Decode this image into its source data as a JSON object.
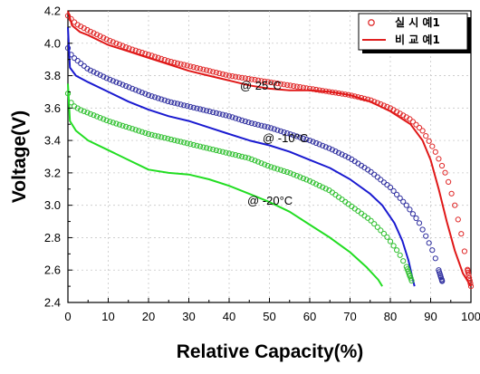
{
  "chart_data": {
    "type": "line",
    "xlabel": "Relative Capacity(%)",
    "ylabel": "Voltage(V)",
    "xlim": [
      0,
      100
    ],
    "ylim": [
      2.4,
      4.2
    ],
    "x_ticks": [
      "0",
      "10",
      "20",
      "30",
      "40",
      "50",
      "60",
      "70",
      "80",
      "90",
      "100"
    ],
    "y_ticks": [
      "2.4",
      "2.6",
      "2.8",
      "3.0",
      "3.2",
      "3.4",
      "3.6",
      "3.8",
      "4.0",
      "4.2"
    ],
    "legend": {
      "position": "top-right",
      "entries": [
        {
          "label": "실 시 예1",
          "marker": "open-circle",
          "color": "#e03030"
        },
        {
          "label": "비 교 예1",
          "marker": "line",
          "color": "#e02020"
        }
      ]
    },
    "annotations": [
      "@ 25°C",
      "@ -10°C",
      "@ -20°C"
    ],
    "series": [
      {
        "kind": "markers",
        "color": "#e02828",
        "points": [
          [
            0,
            4.17
          ],
          [
            2,
            4.12
          ],
          [
            5,
            4.08
          ],
          [
            10,
            4.02
          ],
          [
            15,
            3.97
          ],
          [
            20,
            3.93
          ],
          [
            25,
            3.89
          ],
          [
            30,
            3.86
          ],
          [
            35,
            3.83
          ],
          [
            40,
            3.8
          ],
          [
            45,
            3.78
          ],
          [
            50,
            3.76
          ],
          [
            55,
            3.74
          ],
          [
            60,
            3.72
          ],
          [
            65,
            3.7
          ],
          [
            70,
            3.68
          ],
          [
            75,
            3.65
          ],
          [
            80,
            3.6
          ],
          [
            85,
            3.53
          ],
          [
            88,
            3.46
          ],
          [
            91,
            3.34
          ],
          [
            94,
            3.18
          ],
          [
            96,
            3.0
          ],
          [
            98,
            2.78
          ],
          [
            99,
            2.62
          ],
          [
            100,
            2.5
          ]
        ]
      },
      {
        "kind": "line",
        "color": "#e01818",
        "points": [
          [
            0,
            4.2
          ],
          [
            1,
            4.11
          ],
          [
            3,
            4.07
          ],
          [
            5,
            4.05
          ],
          [
            10,
            3.99
          ],
          [
            15,
            3.95
          ],
          [
            20,
            3.91
          ],
          [
            25,
            3.87
          ],
          [
            30,
            3.83
          ],
          [
            35,
            3.8
          ],
          [
            40,
            3.77
          ],
          [
            45,
            3.74
          ],
          [
            50,
            3.72
          ],
          [
            55,
            3.71
          ],
          [
            60,
            3.71
          ],
          [
            65,
            3.7
          ],
          [
            70,
            3.68
          ],
          [
            75,
            3.64
          ],
          [
            80,
            3.58
          ],
          [
            85,
            3.5
          ],
          [
            88,
            3.4
          ],
          [
            90,
            3.28
          ],
          [
            92,
            3.1
          ],
          [
            94,
            2.9
          ],
          [
            96,
            2.72
          ],
          [
            98,
            2.58
          ],
          [
            100,
            2.5
          ]
        ]
      },
      {
        "kind": "markers",
        "color": "#3030a0",
        "points": [
          [
            0,
            3.97
          ],
          [
            1,
            3.92
          ],
          [
            3,
            3.88
          ],
          [
            5,
            3.84
          ],
          [
            10,
            3.78
          ],
          [
            15,
            3.73
          ],
          [
            20,
            3.68
          ],
          [
            25,
            3.64
          ],
          [
            30,
            3.61
          ],
          [
            35,
            3.58
          ],
          [
            40,
            3.55
          ],
          [
            45,
            3.51
          ],
          [
            50,
            3.48
          ],
          [
            55,
            3.44
          ],
          [
            60,
            3.4
          ],
          [
            65,
            3.35
          ],
          [
            70,
            3.29
          ],
          [
            75,
            3.21
          ],
          [
            80,
            3.11
          ],
          [
            84,
            3.0
          ],
          [
            87,
            2.9
          ],
          [
            89,
            2.8
          ],
          [
            91,
            2.69
          ],
          [
            92,
            2.6
          ],
          [
            93,
            2.52
          ]
        ]
      },
      {
        "kind": "line",
        "color": "#1a1ad0",
        "points": [
          [
            0,
            4.1
          ],
          [
            0.5,
            3.85
          ],
          [
            2,
            3.8
          ],
          [
            5,
            3.76
          ],
          [
            10,
            3.7
          ],
          [
            15,
            3.64
          ],
          [
            20,
            3.59
          ],
          [
            25,
            3.55
          ],
          [
            30,
            3.52
          ],
          [
            35,
            3.48
          ],
          [
            40,
            3.44
          ],
          [
            45,
            3.4
          ],
          [
            50,
            3.37
          ],
          [
            55,
            3.33
          ],
          [
            60,
            3.28
          ],
          [
            65,
            3.23
          ],
          [
            70,
            3.16
          ],
          [
            75,
            3.07
          ],
          [
            78,
            3.0
          ],
          [
            81,
            2.89
          ],
          [
            83,
            2.78
          ],
          [
            84.5,
            2.66
          ],
          [
            85.5,
            2.55
          ],
          [
            86,
            2.5
          ]
        ]
      },
      {
        "kind": "markers",
        "color": "#30c030",
        "points": [
          [
            0,
            3.69
          ],
          [
            1,
            3.62
          ],
          [
            3,
            3.59
          ],
          [
            5,
            3.57
          ],
          [
            10,
            3.52
          ],
          [
            15,
            3.48
          ],
          [
            20,
            3.44
          ],
          [
            25,
            3.41
          ],
          [
            30,
            3.38
          ],
          [
            35,
            3.35
          ],
          [
            40,
            3.32
          ],
          [
            45,
            3.29
          ],
          [
            50,
            3.24
          ],
          [
            55,
            3.2
          ],
          [
            60,
            3.15
          ],
          [
            65,
            3.09
          ],
          [
            70,
            3.0
          ],
          [
            75,
            2.91
          ],
          [
            79,
            2.81
          ],
          [
            82,
            2.71
          ],
          [
            84,
            2.62
          ],
          [
            85.5,
            2.52
          ]
        ]
      },
      {
        "kind": "line",
        "color": "#22dd22",
        "points": [
          [
            0,
            3.75
          ],
          [
            0.5,
            3.52
          ],
          [
            2,
            3.46
          ],
          [
            5,
            3.4
          ],
          [
            10,
            3.34
          ],
          [
            15,
            3.28
          ],
          [
            20,
            3.22
          ],
          [
            25,
            3.2
          ],
          [
            30,
            3.19
          ],
          [
            35,
            3.16
          ],
          [
            40,
            3.12
          ],
          [
            45,
            3.07
          ],
          [
            50,
            3.02
          ],
          [
            55,
            2.96
          ],
          [
            60,
            2.88
          ],
          [
            65,
            2.8
          ],
          [
            70,
            2.71
          ],
          [
            74,
            2.62
          ],
          [
            77,
            2.54
          ],
          [
            78,
            2.5
          ]
        ]
      }
    ]
  }
}
